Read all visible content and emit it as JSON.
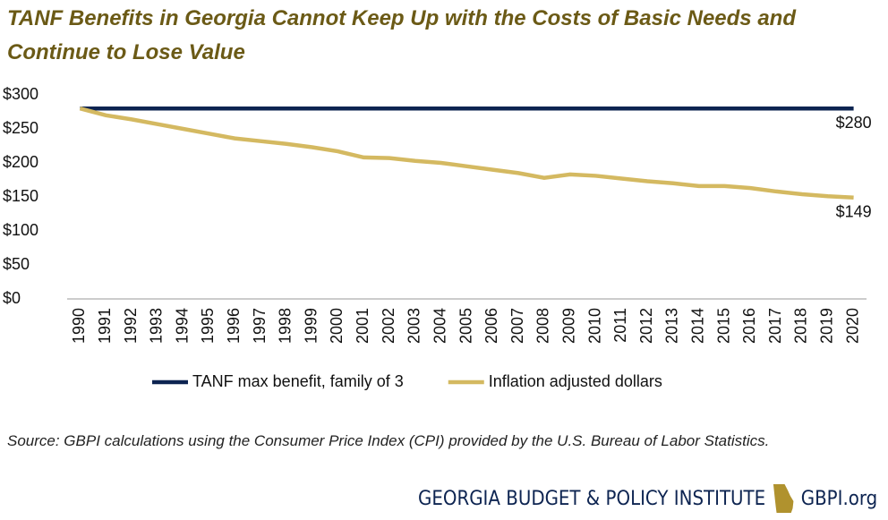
{
  "chart_data": {
    "type": "line",
    "title": "TANF Benefits in Georgia Cannot Keep Up with the Costs of Basic Needs and Continue to Lose Value",
    "categories": [
      "1990",
      "1991",
      "1992",
      "1993",
      "1994",
      "1995",
      "1996",
      "1997",
      "1998",
      "1999",
      "2000",
      "2001",
      "2002",
      "2003",
      "2004",
      "2005",
      "2006",
      "2007",
      "2008",
      "2009",
      "2010",
      "2011",
      "2012",
      "2013",
      "2014",
      "2015",
      "2016",
      "2017",
      "2018",
      "2019",
      "2020"
    ],
    "series": [
      {
        "name": "TANF max benefit, family of 3",
        "color": "#0d2451",
        "values": [
          280,
          280,
          280,
          280,
          280,
          280,
          280,
          280,
          280,
          280,
          280,
          280,
          280,
          280,
          280,
          280,
          280,
          280,
          280,
          280,
          280,
          280,
          280,
          280,
          280,
          280,
          280,
          280,
          280,
          280,
          280
        ],
        "value_labels": [
          null,
          null,
          null,
          null,
          null,
          null,
          null,
          null,
          null,
          null,
          null,
          null,
          null,
          null,
          null,
          null,
          null,
          null,
          null,
          null,
          null,
          null,
          null,
          null,
          null,
          null,
          null,
          null,
          null,
          null,
          "$280"
        ]
      },
      {
        "name": "Inflation adjusted dollars",
        "color": "#d4b961",
        "values": [
          280,
          270,
          264,
          257,
          250,
          243,
          236,
          232,
          228,
          223,
          217,
          208,
          207,
          203,
          200,
          195,
          190,
          185,
          178,
          183,
          181,
          177,
          173,
          170,
          166,
          166,
          163,
          158,
          154,
          151,
          149
        ],
        "value_labels": [
          null,
          null,
          null,
          null,
          null,
          null,
          null,
          null,
          null,
          null,
          null,
          null,
          null,
          null,
          null,
          null,
          null,
          null,
          null,
          null,
          null,
          null,
          null,
          null,
          null,
          null,
          null,
          null,
          null,
          null,
          "$149"
        ]
      }
    ],
    "ylim": [
      0,
      300
    ],
    "yticks": [
      {
        "value": 0,
        "label": "$0"
      },
      {
        "value": 50,
        "label": "$50"
      },
      {
        "value": 100,
        "label": "$100"
      },
      {
        "value": 150,
        "label": "$150"
      },
      {
        "value": 200,
        "label": "$200"
      },
      {
        "value": 250,
        "label": "$250"
      },
      {
        "value": 300,
        "label": "$300"
      }
    ],
    "legend": "bottom",
    "source": "Source: GBPI calculations using the Consumer Price Index (CPI) provided by the U.S. Bureau of Labor Statistics.",
    "footer": {
      "name": "GEORGIA BUDGET & POLICY INSTITUTE",
      "url": "GBPI.org"
    }
  }
}
